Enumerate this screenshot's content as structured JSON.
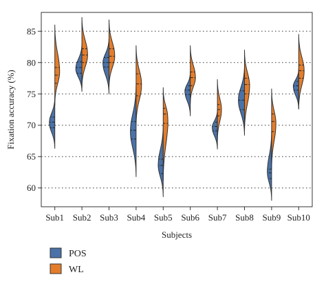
{
  "chart_data": {
    "type": "violin",
    "title": "",
    "xlabel": "Subjects",
    "ylabel": "Fixation accuracy (%)",
    "ylim": [
      57,
      88
    ],
    "yticks": [
      60,
      65,
      70,
      75,
      80,
      85
    ],
    "grid": "horizontal-dotted",
    "legend_position": "bottom-left",
    "categories": [
      "Sub1",
      "Sub2",
      "Sub3",
      "Sub4",
      "Sub5",
      "Sub6",
      "Sub7",
      "Sub8",
      "Sub9",
      "Sub10"
    ],
    "series": [
      {
        "name": "POS",
        "color": "#4a72a8",
        "side": "left",
        "min": [
          66.3,
          75.4,
          75.0,
          61.8,
          58.6,
          71.5,
          66.2,
          68.4,
          58.0,
          72.6
        ],
        "max": [
          74.5,
          83.0,
          84.0,
          76.5,
          70.0,
          78.5,
          72.5,
          79.5,
          69.0,
          79.0
        ],
        "q1": [
          69.6,
          78.3,
          79.3,
          67.8,
          62.3,
          74.9,
          69.1,
          72.5,
          61.5,
          75.6
        ],
        "median": [
          70.5,
          79.2,
          80.0,
          69.2,
          63.6,
          75.6,
          69.8,
          74.0,
          62.4,
          76.3
        ],
        "q3": [
          71.3,
          80.1,
          80.8,
          70.6,
          64.6,
          76.3,
          70.5,
          75.5,
          63.0,
          77.0
        ],
        "mode": [
          70.4,
          79.0,
          80.0,
          69.0,
          63.5,
          75.5,
          69.7,
          74.0,
          62.3,
          76.3
        ],
        "width": [
          0.4,
          0.45,
          0.45,
          0.42,
          0.37,
          0.4,
          0.38,
          0.45,
          0.32,
          0.4
        ]
      },
      {
        "name": "WL",
        "color": "#e47d2b",
        "side": "right",
        "min": [
          73.2,
          76.0,
          76.0,
          70.0,
          61.2,
          73.5,
          67.5,
          69.0,
          63.0,
          72.6
        ],
        "max": [
          86.0,
          87.2,
          86.8,
          82.7,
          76.0,
          82.7,
          77.3,
          82.0,
          75.8,
          84.5
        ],
        "q1": [
          76.7,
          80.0,
          80.0,
          74.7,
          70.3,
          76.3,
          71.5,
          75.0,
          69.0,
          77.5
        ],
        "median": [
          78.0,
          81.2,
          81.0,
          76.6,
          71.8,
          77.6,
          72.5,
          76.5,
          70.6,
          78.7
        ],
        "q3": [
          79.2,
          82.2,
          82.2,
          78.2,
          72.7,
          78.5,
          73.3,
          77.5,
          71.8,
          79.6
        ],
        "mode": [
          78.3,
          81.2,
          81.0,
          76.5,
          71.8,
          77.5,
          72.5,
          76.5,
          70.5,
          78.7
        ],
        "width": [
          0.36,
          0.42,
          0.42,
          0.4,
          0.38,
          0.38,
          0.3,
          0.38,
          0.32,
          0.4
        ]
      }
    ]
  }
}
